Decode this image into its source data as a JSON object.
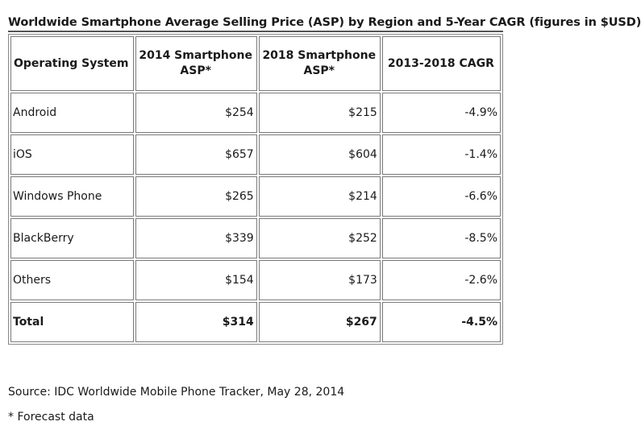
{
  "title": "Worldwide Smartphone Average Selling Price (ASP) by Region and 5-Year CAGR (figures in $USD)",
  "table": {
    "headers": [
      "Operating System",
      "2014 Smartphone ASP*",
      "2018 Smartphone ASP*",
      "2013-2018 CAGR"
    ],
    "rows": [
      [
        "Android",
        "$254",
        "$215",
        "-4.9%"
      ],
      [
        "iOS",
        "$657",
        "$604",
        "-1.4%"
      ],
      [
        "Windows Phone",
        "$265",
        "$214",
        "-6.6%"
      ],
      [
        "BlackBerry",
        "$339",
        "$252",
        "-8.5%"
      ],
      [
        "Others",
        "$154",
        "$173",
        "-2.6%"
      ]
    ],
    "total": [
      "Total",
      "$314",
      "$267",
      "-4.5%"
    ]
  },
  "source": "Source: IDC Worldwide Mobile Phone Tracker, May 28, 2014",
  "footnote": "* Forecast data"
}
